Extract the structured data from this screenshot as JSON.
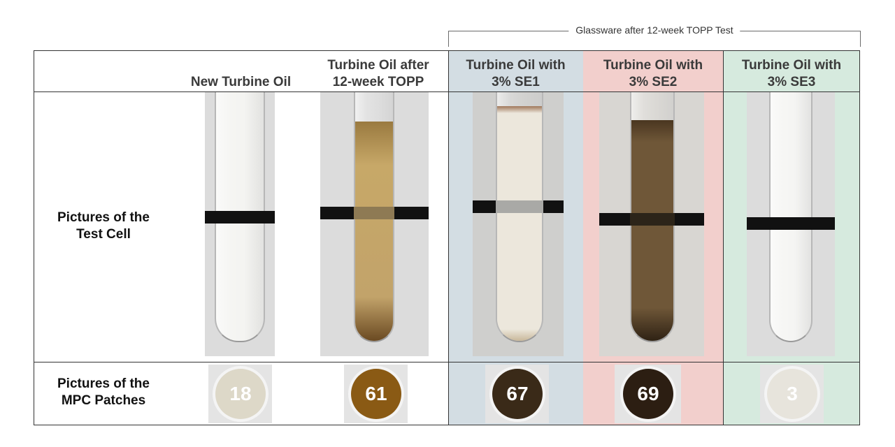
{
  "bracket_label": "Glassware after 12-week TOPP Test",
  "columns": [
    {
      "header": "New Turbine Oil",
      "oil_color": "#f3f3f0",
      "patch_color": "#ddd8c8",
      "patch_value": "18"
    },
    {
      "header": "Turbine Oil after\n12-week TOPP",
      "oil_color": "#c2a36a",
      "patch_color": "#8a5a14",
      "patch_value": "61"
    },
    {
      "header": "Turbine Oil with\n3% SE1",
      "oil_color": "#ece7dc",
      "patch_color": "#3a2a18",
      "patch_value": "67"
    },
    {
      "header": "Turbine Oil with\n3% SE2",
      "oil_color": "#6f5738",
      "patch_color": "#2c1e12",
      "patch_value": "69"
    },
    {
      "header": "Turbine Oil with\n3% SE3",
      "oil_color": "#f4f4f2",
      "patch_color": "#e7e4dc",
      "patch_value": "3"
    }
  ],
  "row_labels": {
    "test_cell": "Pictures of the\nTest Cell",
    "mpc_patches": "Pictures of the\nMPC Patches"
  }
}
